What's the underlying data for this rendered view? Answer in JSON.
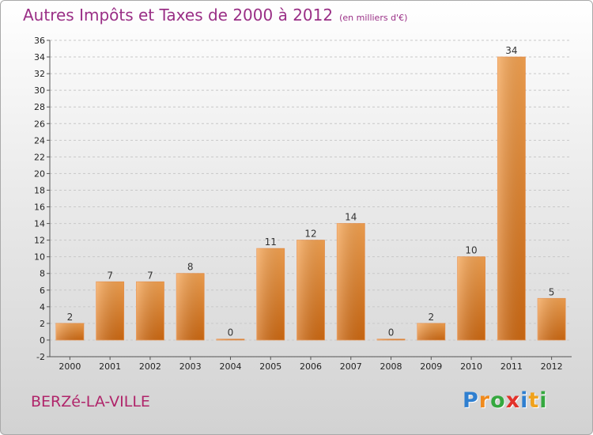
{
  "title": "Autres Impôts et Taxes de 2000 à 2012",
  "subtitle": "(en milliers d'€)",
  "commune": "BERZé-LA-VILLE",
  "logo": {
    "letters": [
      "P",
      "r",
      "o",
      "x",
      "i",
      "t",
      "i"
    ],
    "colors": [
      "#2f7fd0",
      "#f08a1c",
      "#35a83f",
      "#e2322b",
      "#2f7fd0",
      "#f0a21c",
      "#35a83f"
    ]
  },
  "colors": {
    "bar_top": "#f5a351",
    "bar_bottom": "#d06a12",
    "grid": "#c8c8c8"
  },
  "chart_data": {
    "type": "bar",
    "title": "Autres Impôts et Taxes de 2000 à 2012",
    "subtitle": "(en milliers d'€)",
    "categories": [
      "2000",
      "2001",
      "2002",
      "2003",
      "2004",
      "2005",
      "2006",
      "2007",
      "2008",
      "2009",
      "2010",
      "2011",
      "2012"
    ],
    "values": [
      2,
      7,
      7,
      8,
      0,
      11,
      12,
      14,
      0,
      2,
      10,
      34,
      5
    ],
    "ylim": [
      -2,
      36
    ],
    "yticks": [
      -2,
      0,
      2,
      4,
      6,
      8,
      10,
      12,
      14,
      16,
      18,
      20,
      22,
      24,
      26,
      28,
      30,
      32,
      34,
      36
    ],
    "grid": true,
    "legend": "none"
  }
}
